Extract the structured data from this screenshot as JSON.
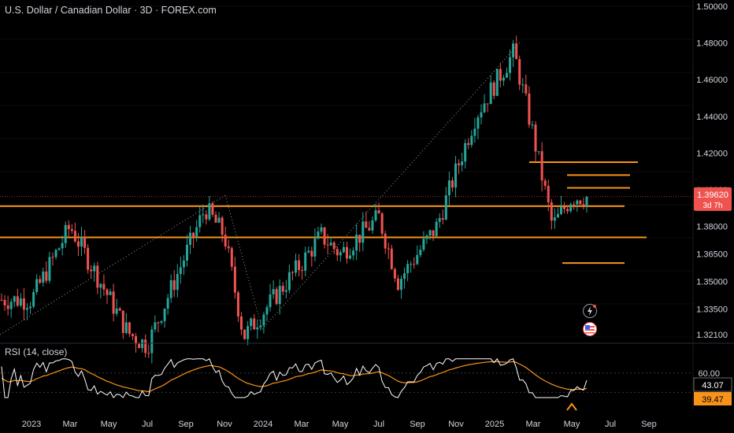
{
  "header": {
    "title": "U.S. Dollar / Canadian Dollar · 3D · FOREX.com"
  },
  "rsi": {
    "label": "RSI (14, close)",
    "level_label": "60.00",
    "value_label": "43.07",
    "ma_label": "39.47"
  },
  "price_label": {
    "value": "1.39620",
    "countdown": "3d 7h"
  },
  "icons": [
    "flash-icon",
    "us-flag-icon",
    "arrow-up-icon"
  ],
  "colors": {
    "up": "#26a69a",
    "down": "#ef5350",
    "level": "#f7931a",
    "rsi_line": "#ffffff",
    "rsi_ma": "#f7931a",
    "background": "#000000",
    "price_tag": "#ef5350"
  },
  "chart_data": [
    {
      "type": "candlestick",
      "title": "U.S. Dollar / Canadian Dollar · 3D · FOREX.com",
      "y_ticks": [
        "1.50000",
        "1.48000",
        "1.46000",
        "1.44000",
        "1.42000",
        "1.40000",
        "1.38000",
        "1.36500",
        "1.35000",
        "1.33500",
        "1.32100"
      ],
      "x_ticks": [
        "2023",
        "Mar",
        "May",
        "Jul",
        "Sep",
        "Nov",
        "2024",
        "Mar",
        "May",
        "Jul",
        "Sep",
        "Nov",
        "2025",
        "Mar",
        "May",
        "Jul",
        "Sep"
      ],
      "ylim": [
        1.318,
        1.5
      ],
      "last_price": 1.3962,
      "key_points": [
        {
          "x": "2023-01",
          "y": 1.34
        },
        {
          "x": "2023-03",
          "y": 1.38
        },
        {
          "x": "2023-06",
          "y": 1.322
        },
        {
          "x": "2023-07",
          "y": 1.315
        },
        {
          "x": "2023-10",
          "y": 1.39
        },
        {
          "x": "2023-11",
          "y": 1.375
        },
        {
          "x": "2023-12",
          "y": 1.32
        },
        {
          "x": "2024-03",
          "y": 1.36
        },
        {
          "x": "2024-04",
          "y": 1.375
        },
        {
          "x": "2024-05",
          "y": 1.365
        },
        {
          "x": "2024-07",
          "y": 1.385
        },
        {
          "x": "2024-08",
          "y": 1.35
        },
        {
          "x": "2024-10",
          "y": 1.38
        },
        {
          "x": "2024-12",
          "y": 1.44
        },
        {
          "x": "2025-02",
          "y": 1.475
        },
        {
          "x": "2025-03",
          "y": 1.43
        },
        {
          "x": "2025-04",
          "y": 1.38
        },
        {
          "x": "2025-05",
          "y": 1.396
        }
      ],
      "levels": [
        1.415,
        1.408,
        1.401,
        1.391,
        1.374,
        1.36
      ]
    },
    {
      "type": "line",
      "title": "RSI (14, close)",
      "y_ticks": [
        "60.00"
      ],
      "series": [
        {
          "name": "RSI",
          "last": 43.07
        },
        {
          "name": "MA",
          "last": 39.47
        }
      ]
    }
  ]
}
